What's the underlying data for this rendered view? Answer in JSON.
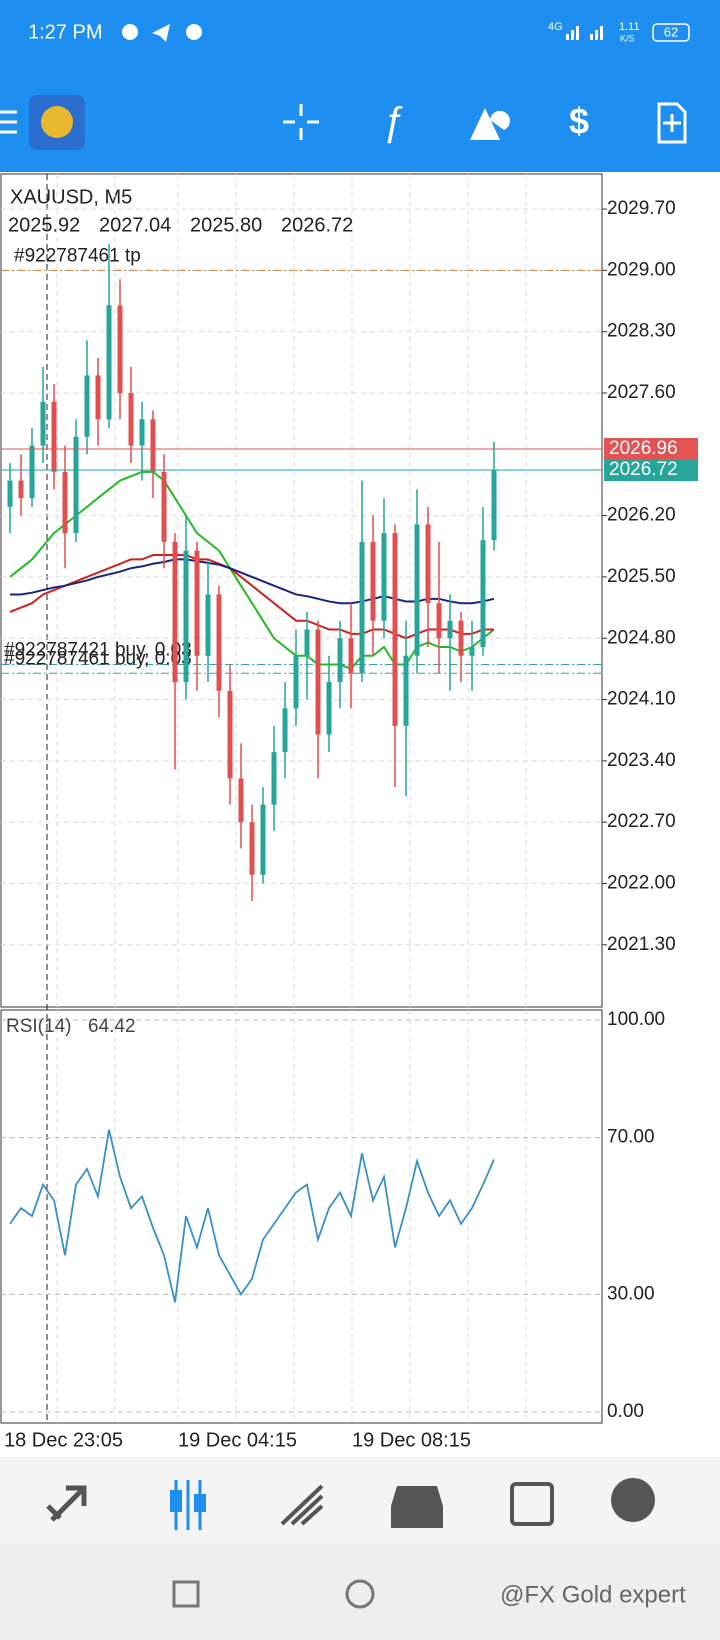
{
  "status_bar": {
    "time": "1:27 PM",
    "network": "4G",
    "speed": "1.11",
    "speed_unit": "K/S",
    "battery": "62"
  },
  "chart": {
    "symbol": "XAUUSD, M5",
    "last_quote": [
      "2025.92",
      "2027.04",
      "2025.80",
      "2026.72"
    ],
    "orders": [
      {
        "label": "#922787461 tp",
        "price": 2029.0,
        "color": "#d08040"
      },
      {
        "label": "#922787421 buy, 0.03",
        "price": 2024.5,
        "color": "#3aa0a0"
      },
      {
        "label": "#922787461 buy, 0.03",
        "price": 2024.4,
        "color": "#3aa0a0"
      }
    ],
    "ylim": [
      2020.59,
      2030.1
    ],
    "yticks": [
      {
        "value": 2029.7,
        "label": "2029.70"
      },
      {
        "value": 2029.0,
        "label": "2029.00"
      },
      {
        "value": 2028.3,
        "label": "2028.30"
      },
      {
        "value": 2027.6,
        "label": "2027.60"
      },
      {
        "value": 2026.2,
        "label": "2026.20"
      },
      {
        "value": 2025.5,
        "label": "2025.50"
      },
      {
        "value": 2024.8,
        "label": "2024.80"
      },
      {
        "value": 2024.1,
        "label": "2024.10"
      },
      {
        "value": 2023.4,
        "label": "2023.40"
      },
      {
        "value": 2022.7,
        "label": "2022.70"
      },
      {
        "value": 2022.0,
        "label": "2022.00"
      },
      {
        "value": 2021.3,
        "label": "2021.30"
      }
    ],
    "ask": 2026.96,
    "ask_color": "#e25454",
    "bid": 2026.72,
    "bid_color": "#26a69a",
    "bull_color": "#26a69a",
    "bear_color": "#e05050",
    "candles": [
      [
        2026.3,
        2026.8,
        2026.0,
        2026.6
      ],
      [
        2026.6,
        2026.9,
        2026.2,
        2026.4
      ],
      [
        2026.4,
        2027.2,
        2026.3,
        2027.0
      ],
      [
        2027.0,
        2027.9,
        2026.8,
        2027.5
      ],
      [
        2027.5,
        2027.7,
        2026.5,
        2026.7
      ],
      [
        2026.7,
        2027.0,
        2025.6,
        2026.0
      ],
      [
        2026.0,
        2027.3,
        2025.9,
        2027.1
      ],
      [
        2027.1,
        2028.2,
        2026.9,
        2027.8
      ],
      [
        2027.8,
        2028.0,
        2027.0,
        2027.3
      ],
      [
        2027.3,
        2029.3,
        2027.2,
        2028.6
      ],
      [
        2028.6,
        2028.9,
        2027.3,
        2027.6
      ],
      [
        2027.6,
        2027.9,
        2026.8,
        2027.0
      ],
      [
        2027.0,
        2027.5,
        2026.6,
        2027.3
      ],
      [
        2027.3,
        2027.4,
        2026.4,
        2026.7
      ],
      [
        2026.7,
        2026.9,
        2025.6,
        2025.9
      ],
      [
        2025.9,
        2026.0,
        2023.3,
        2024.3
      ],
      [
        2024.3,
        2026.2,
        2024.1,
        2025.8
      ],
      [
        2025.8,
        2025.9,
        2024.2,
        2024.6
      ],
      [
        2024.6,
        2025.7,
        2024.3,
        2025.3
      ],
      [
        2025.3,
        2025.4,
        2023.9,
        2024.2
      ],
      [
        2024.2,
        2024.5,
        2022.9,
        2023.2
      ],
      [
        2023.2,
        2023.6,
        2022.4,
        2022.7
      ],
      [
        2022.7,
        2022.9,
        2021.8,
        2022.1
      ],
      [
        2022.1,
        2023.1,
        2022.0,
        2022.9
      ],
      [
        2022.9,
        2023.8,
        2022.6,
        2023.5
      ],
      [
        2023.5,
        2024.3,
        2023.2,
        2024.0
      ],
      [
        2024.0,
        2024.9,
        2023.8,
        2024.6
      ],
      [
        2024.6,
        2025.1,
        2024.1,
        2024.9
      ],
      [
        2024.9,
        2025.0,
        2023.2,
        2023.7
      ],
      [
        2023.7,
        2024.6,
        2023.5,
        2024.3
      ],
      [
        2024.3,
        2025.0,
        2024.0,
        2024.8
      ],
      [
        2024.8,
        2025.2,
        2024.0,
        2024.4
      ],
      [
        2024.4,
        2026.6,
        2024.3,
        2025.9
      ],
      [
        2025.9,
        2026.2,
        2024.6,
        2025.0
      ],
      [
        2025.0,
        2026.4,
        2024.8,
        2026.0
      ],
      [
        2026.0,
        2026.1,
        2023.1,
        2023.8
      ],
      [
        2023.8,
        2025.0,
        2023.0,
        2024.6
      ],
      [
        2024.6,
        2026.5,
        2024.4,
        2026.1
      ],
      [
        2026.1,
        2026.3,
        2024.7,
        2025.2
      ],
      [
        2025.2,
        2025.9,
        2024.4,
        2024.8
      ],
      [
        2024.8,
        2025.3,
        2024.2,
        2025.0
      ],
      [
        2025.0,
        2025.1,
        2024.3,
        2024.6
      ],
      [
        2024.6,
        2025.0,
        2024.2,
        2024.7
      ],
      [
        2024.7,
        2026.3,
        2024.6,
        2025.92
      ],
      [
        2025.92,
        2027.04,
        2025.8,
        2026.72
      ]
    ],
    "moving_averages": [
      {
        "color": "#22bb22",
        "values": [
          2025.5,
          2025.6,
          2025.7,
          2025.85,
          2026.0,
          2026.1,
          2026.2,
          2026.3,
          2026.4,
          2026.5,
          2026.6,
          2026.65,
          2026.7,
          2026.7,
          2026.6,
          2026.4,
          2026.2,
          2026.0,
          2025.9,
          2025.8,
          2025.6,
          2025.4,
          2025.2,
          2025.0,
          2024.8,
          2024.7,
          2024.6,
          2024.6,
          2024.5,
          2024.5,
          2024.5,
          2024.45,
          2024.6,
          2024.6,
          2024.7,
          2024.5,
          2024.5,
          2024.7,
          2024.75,
          2024.7,
          2024.7,
          2024.65,
          2024.7,
          2024.8,
          2024.9
        ]
      },
      {
        "color": "#cc2222",
        "values": [
          2025.1,
          2025.15,
          2025.2,
          2025.3,
          2025.35,
          2025.4,
          2025.45,
          2025.5,
          2025.55,
          2025.6,
          2025.65,
          2025.7,
          2025.7,
          2025.75,
          2025.75,
          2025.75,
          2025.75,
          2025.7,
          2025.7,
          2025.65,
          2025.6,
          2025.5,
          2025.4,
          2025.3,
          2025.2,
          2025.1,
          2025.0,
          2025.0,
          2024.95,
          2024.9,
          2024.9,
          2024.85,
          2024.85,
          2024.9,
          2024.9,
          2024.85,
          2024.8,
          2024.85,
          2024.9,
          2024.9,
          2024.9,
          2024.85,
          2024.85,
          2024.9,
          2024.9
        ]
      },
      {
        "color": "#1a237e",
        "values": [
          2025.3,
          2025.3,
          2025.32,
          2025.35,
          2025.38,
          2025.4,
          2025.43,
          2025.46,
          2025.5,
          2025.53,
          2025.56,
          2025.6,
          2025.62,
          2025.65,
          2025.67,
          2025.7,
          2025.7,
          2025.68,
          2025.66,
          2025.64,
          2025.6,
          2025.55,
          2025.5,
          2025.45,
          2025.4,
          2025.35,
          2025.3,
          2025.28,
          2025.25,
          2025.22,
          2025.2,
          2025.2,
          2025.22,
          2025.25,
          2025.28,
          2025.25,
          2025.22,
          2025.22,
          2025.25,
          2025.25,
          2025.22,
          2025.2,
          2025.2,
          2025.22,
          2025.25
        ]
      }
    ],
    "xlabels": [
      "18 Dec 23:05",
      "19 Dec 04:15",
      "19 Dec 08:15"
    ]
  },
  "rsi": {
    "name": "RSI(14)",
    "color": "#3a8fc4",
    "ylim": [
      -2.8,
      102.55
    ],
    "yticks": [
      {
        "value": 100,
        "label": "100.00"
      },
      {
        "value": 70,
        "label": "70.00"
      },
      {
        "value": 30,
        "label": "30.00"
      },
      {
        "value": 0,
        "label": "0.00"
      }
    ],
    "values": [
      48,
      52,
      50,
      58,
      54,
      40,
      58,
      62,
      55,
      72,
      60,
      52,
      55,
      47,
      40,
      28,
      50,
      42,
      52,
      40,
      35,
      30,
      34,
      44,
      48,
      52,
      56,
      58,
      44,
      52,
      56,
      50,
      66,
      54,
      60,
      42,
      52,
      64,
      56,
      50,
      54,
      48,
      52,
      58,
      64.42
    ]
  },
  "watermark": "@FX Gold expert"
}
